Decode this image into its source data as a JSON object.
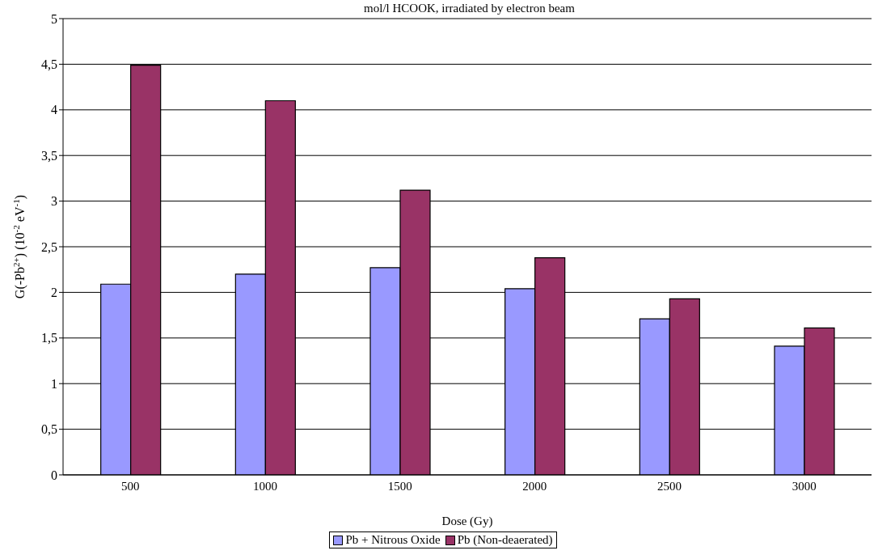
{
  "chart_data": {
    "type": "bar",
    "title": "mol/l HCOOK, irradiated by electron beam",
    "xlabel": "Dose (Gy)",
    "ylabel": "G(-Pb$^{2+}$) (10$^{-2}$ eV$^{-1}$)",
    "categories": [
      "500",
      "1000",
      "1500",
      "2000",
      "2500",
      "3000"
    ],
    "series": [
      {
        "name": "Pb + Nitrous Oxide",
        "color": "#9999ff",
        "values": [
          2.09,
          2.2,
          2.27,
          2.04,
          1.71,
          1.41
        ]
      },
      {
        "name": "Pb (Non-deaerated)",
        "color": "#993366",
        "values": [
          4.49,
          4.1,
          3.12,
          2.38,
          1.93,
          1.61
        ]
      }
    ],
    "ylim": [
      0,
      5
    ],
    "yticks": [
      0,
      {
        "value": 0.5,
        "label": "0,5"
      },
      1,
      {
        "value": 1.5,
        "label": "1,5"
      },
      2,
      {
        "value": 2.5,
        "label": "2,5"
      },
      3,
      {
        "value": 3.5,
        "label": "3,5"
      },
      4,
      {
        "value": 4.5,
        "label": "4,5"
      },
      5
    ],
    "grid": "y",
    "legend": "bottom"
  }
}
